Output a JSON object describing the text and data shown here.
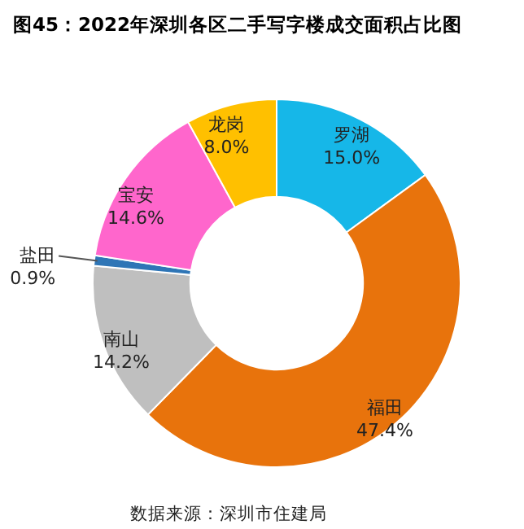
{
  "chart_data": {
    "type": "donut",
    "title": "图45：2022年深圳各区二手写字楼成交面积占比图",
    "categories": [
      "罗湖",
      "福田",
      "南山",
      "盐田",
      "宝安",
      "龙岗"
    ],
    "values": [
      15.0,
      47.4,
      14.2,
      0.9,
      14.6,
      8.0
    ],
    "value_labels": [
      "15.0%",
      "47.4%",
      "14.2%",
      "0.9%",
      "14.6%",
      "8.0%"
    ],
    "colors": [
      "#16b7e8",
      "#e8730c",
      "#bfbfbf",
      "#2e75b6",
      "#ff66cc",
      "#ffc000"
    ],
    "annotations": [
      "数据来源：深圳市住建局"
    ]
  }
}
